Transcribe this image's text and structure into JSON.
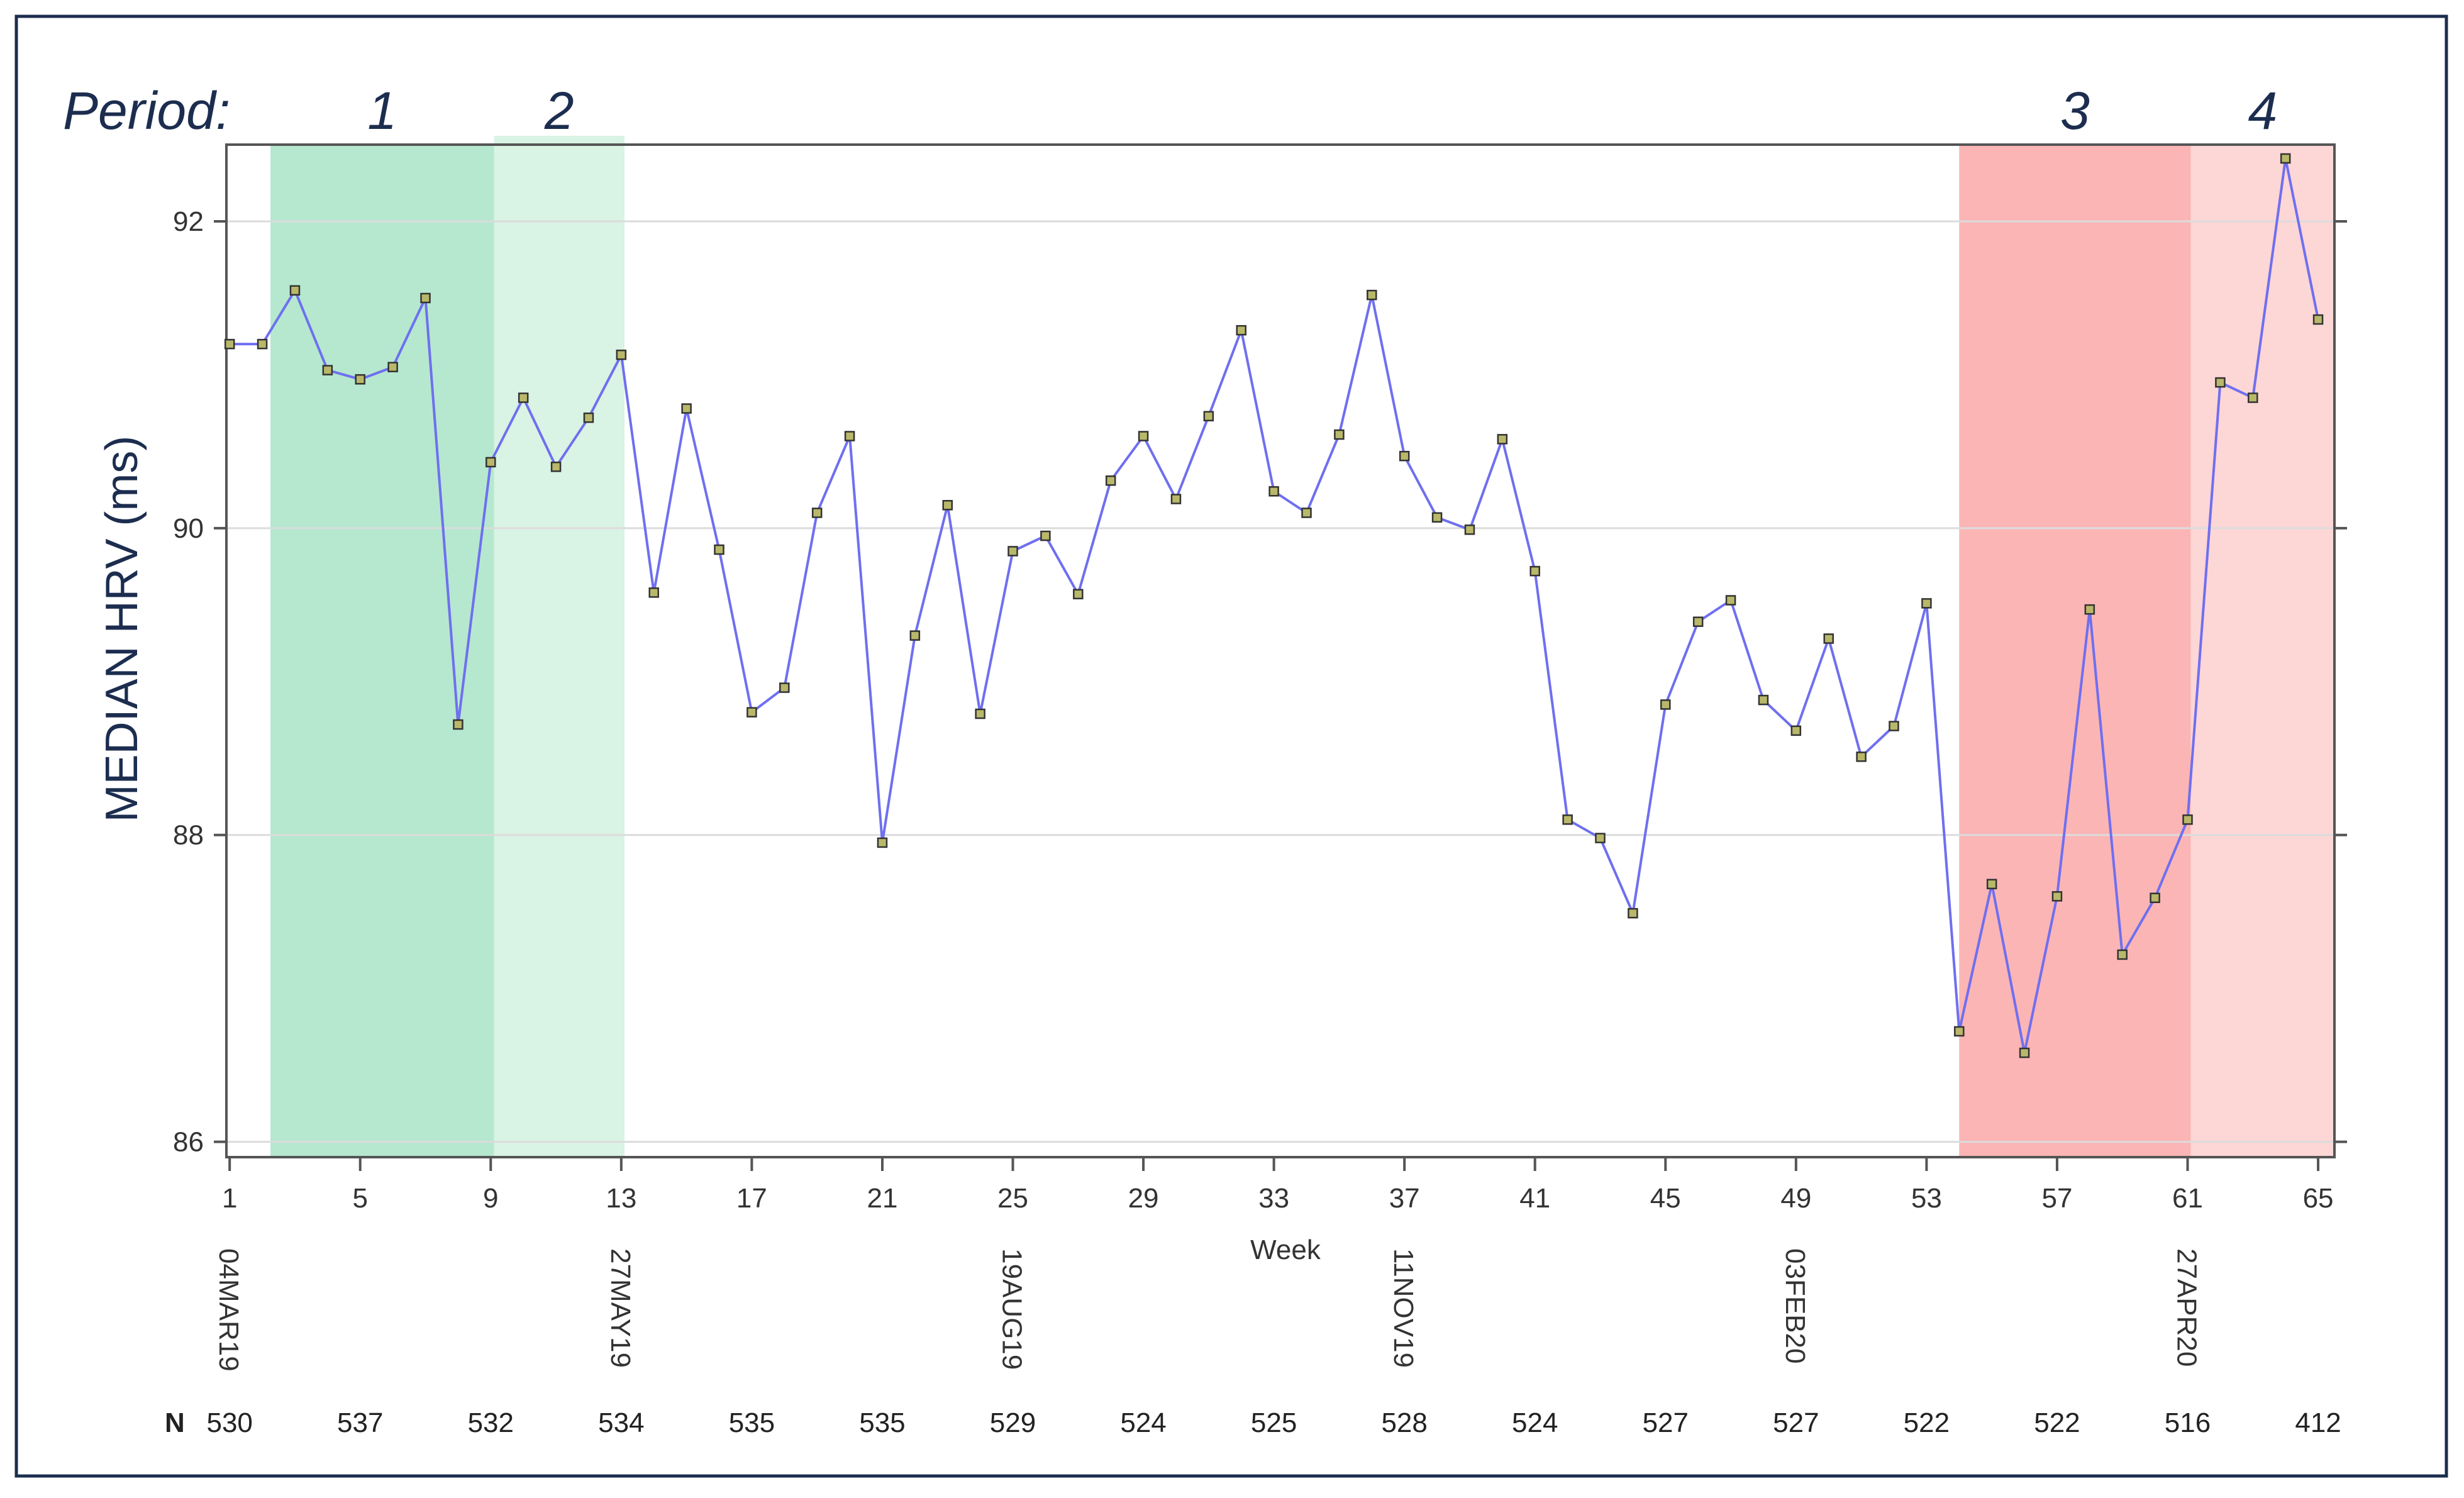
{
  "chart_data": {
    "type": "line",
    "title": "",
    "xlabel": "Week",
    "ylabel": "MEDIAN HRV (ms)",
    "ylim": [
      85.9,
      92.5
    ],
    "xlim": [
      0.9,
      65.5
    ],
    "yticks": [
      86,
      88,
      90,
      92
    ],
    "xticks": [
      1,
      5,
      9,
      13,
      17,
      21,
      25,
      29,
      33,
      37,
      41,
      45,
      49,
      53,
      57,
      61,
      65
    ],
    "grid": true,
    "periods_label": "Period:",
    "periods": [
      {
        "label": "1",
        "start": 2.25,
        "end": 9.1,
        "color": "#b5e8cf"
      },
      {
        "label": "2",
        "start": 9.1,
        "end": 13.1,
        "color": "#d9f3e4"
      },
      {
        "label": "3",
        "start": 54.0,
        "end": 61.1,
        "color": "#fbb5b5"
      },
      {
        "label": "4",
        "start": 61.1,
        "end": 65.5,
        "color": "#fdd6d6"
      }
    ],
    "date_labels": [
      {
        "week": 1,
        "label": "04MAR19"
      },
      {
        "week": 13,
        "label": "27MAY19"
      },
      {
        "week": 25,
        "label": "19AUG19"
      },
      {
        "week": 37,
        "label": "11NOV19"
      },
      {
        "week": 49,
        "label": "03FEB20"
      },
      {
        "week": 61,
        "label": "27APR20"
      }
    ],
    "n_row_label": "N",
    "n_counts": [
      {
        "week": 1,
        "value": "530"
      },
      {
        "week": 5,
        "value": "537"
      },
      {
        "week": 9,
        "value": "532"
      },
      {
        "week": 13,
        "value": "534"
      },
      {
        "week": 17,
        "value": "535"
      },
      {
        "week": 21,
        "value": "535"
      },
      {
        "week": 25,
        "value": "529"
      },
      {
        "week": 29,
        "value": "524"
      },
      {
        "week": 33,
        "value": "525"
      },
      {
        "week": 37,
        "value": "528"
      },
      {
        "week": 41,
        "value": "524"
      },
      {
        "week": 45,
        "value": "527"
      },
      {
        "week": 49,
        "value": "527"
      },
      {
        "week": 53,
        "value": "522"
      },
      {
        "week": 57,
        "value": "522"
      },
      {
        "week": 61,
        "value": "516"
      },
      {
        "week": 65,
        "value": "412"
      }
    ],
    "series": [
      {
        "color": "#6f6ff0",
        "x": [
          1,
          2,
          3,
          4,
          5,
          6,
          7,
          8,
          9,
          10,
          11,
          12,
          13,
          14,
          15,
          16,
          17,
          18,
          19,
          20,
          21,
          22,
          23,
          24,
          25,
          26,
          27,
          28,
          29,
          30,
          31,
          32,
          33,
          34,
          35,
          36,
          37,
          38,
          39,
          40,
          41,
          42,
          43,
          44,
          45,
          46,
          47,
          48,
          49,
          50,
          51,
          52,
          53,
          54,
          55,
          56,
          57,
          58,
          59,
          60,
          61,
          62,
          63,
          64,
          65
        ],
        "y": [
          91.2,
          91.2,
          91.55,
          91.03,
          90.97,
          91.05,
          91.5,
          88.72,
          90.43,
          90.85,
          90.4,
          90.72,
          91.13,
          89.58,
          90.78,
          89.86,
          88.8,
          88.96,
          90.1,
          90.6,
          87.95,
          89.3,
          90.15,
          88.79,
          89.85,
          89.95,
          89.57,
          90.31,
          90.6,
          90.19,
          90.73,
          91.29,
          90.24,
          90.1,
          90.61,
          91.52,
          90.47,
          90.07,
          89.99,
          90.58,
          89.72,
          88.1,
          87.98,
          87.49,
          88.85,
          89.39,
          89.53,
          88.88,
          88.68,
          89.28,
          88.51,
          88.71,
          89.51,
          86.72,
          87.68,
          86.58,
          87.6,
          89.47,
          87.22,
          87.59,
          88.1,
          90.95,
          90.85,
          92.41,
          91.36
        ]
      }
    ]
  }
}
